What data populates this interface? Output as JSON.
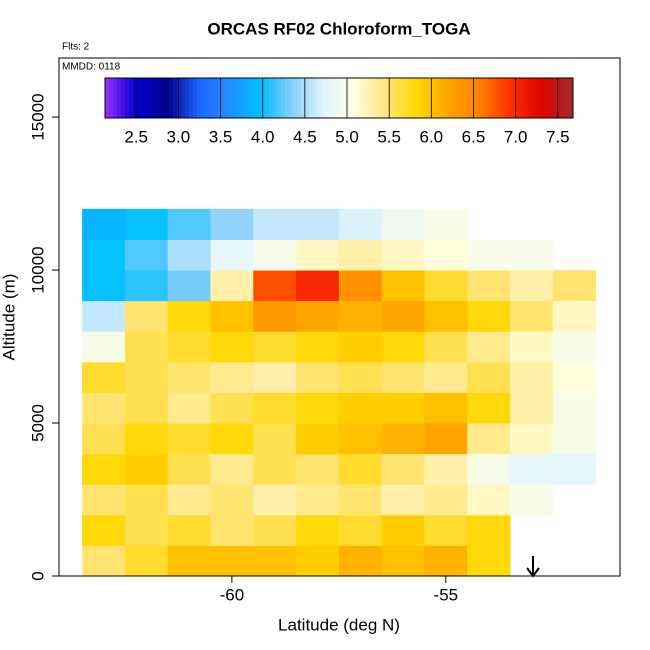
{
  "chart_data": {
    "type": "heatmap",
    "title": "ORCAS RF02 Chloroform_TOGA",
    "annotations": [
      "Flts: 2",
      "MMDD: 0118"
    ],
    "x_label": "Latitude (deg N)",
    "y_label": "Altitude (m)",
    "xlim": [
      -64.04,
      -50.93
    ],
    "xticks": [
      -60,
      -55
    ],
    "ylim": [
      0,
      16930
    ],
    "yticks": [
      0,
      5000,
      10000,
      15000
    ],
    "x": [
      -63,
      -62,
      -61,
      -60,
      -59,
      -58,
      -57,
      -56,
      -55,
      -54,
      -53,
      -52
    ],
    "y": [
      500,
      1500,
      2500,
      3500,
      4500,
      5500,
      6500,
      7500,
      8500,
      9500,
      10500,
      11500
    ],
    "values": [
      [
        5.5,
        5.7,
        6.0,
        6.0,
        6.0,
        5.9,
        6.1,
        6.0,
        6.1,
        5.8,
        null,
        null
      ],
      [
        5.8,
        5.6,
        5.7,
        5.5,
        5.6,
        5.8,
        5.7,
        5.9,
        5.7,
        5.8,
        null,
        null
      ],
      [
        5.5,
        5.6,
        5.4,
        5.5,
        5.3,
        5.4,
        5.5,
        5.3,
        5.4,
        5.2,
        5.0,
        null
      ],
      [
        5.8,
        5.9,
        5.6,
        5.4,
        5.6,
        5.5,
        5.7,
        5.5,
        5.3,
        5.0,
        4.8,
        4.8
      ],
      [
        5.6,
        5.8,
        5.7,
        5.8,
        5.6,
        5.9,
        6.0,
        6.1,
        6.2,
        5.4,
        5.2,
        5.0
      ],
      [
        5.5,
        5.6,
        5.4,
        5.6,
        5.7,
        5.8,
        5.9,
        5.9,
        6.0,
        5.8,
        5.3,
        5.0
      ],
      [
        5.7,
        5.6,
        5.5,
        5.4,
        5.3,
        5.5,
        5.6,
        5.5,
        5.4,
        5.6,
        5.3,
        5.1
      ],
      [
        5.0,
        5.6,
        5.7,
        5.8,
        5.7,
        5.8,
        5.9,
        5.8,
        5.6,
        5.4,
        5.2,
        5.0
      ],
      [
        4.6,
        5.5,
        5.8,
        6.0,
        6.3,
        6.2,
        6.1,
        6.2,
        6.0,
        5.8,
        5.5,
        5.2
      ],
      [
        4.0,
        4.1,
        4.3,
        5.3,
        6.8,
        7.0,
        6.4,
        6.0,
        5.7,
        5.5,
        5.3,
        5.5
      ],
      [
        4.0,
        4.2,
        4.5,
        4.8,
        5.0,
        5.2,
        5.3,
        5.2,
        5.1,
        5.0,
        5.0,
        null
      ],
      [
        3.9,
        4.0,
        4.2,
        4.4,
        4.6,
        4.6,
        4.7,
        4.9,
        5.0,
        null,
        null,
        null
      ]
    ],
    "colorbar_lim": [
      2.13,
      7.68
    ],
    "colorbar_ticks": [
      2.5,
      {
        "value": 3,
        "label": "3.0"
      },
      3.5,
      {
        "value": 4,
        "label": "4.0"
      },
      4.5,
      {
        "value": 5,
        "label": "5.0"
      },
      5.5,
      {
        "value": 6,
        "label": "6.0"
      },
      6.5,
      {
        "value": 7,
        "label": "7.0"
      },
      7.5
    ],
    "colors": [
      "#9b30ff",
      "#0000cd",
      "#00008b",
      "#1e64ff",
      "#1e90ff",
      "#00bfff",
      "#87cefa",
      "#e0f4ff",
      "#ffffe0",
      "#ffe680",
      "#ffd700",
      "#ffa500",
      "#ff7f00",
      "#ff3000",
      "#e00000",
      "#a52a2a"
    ]
  }
}
